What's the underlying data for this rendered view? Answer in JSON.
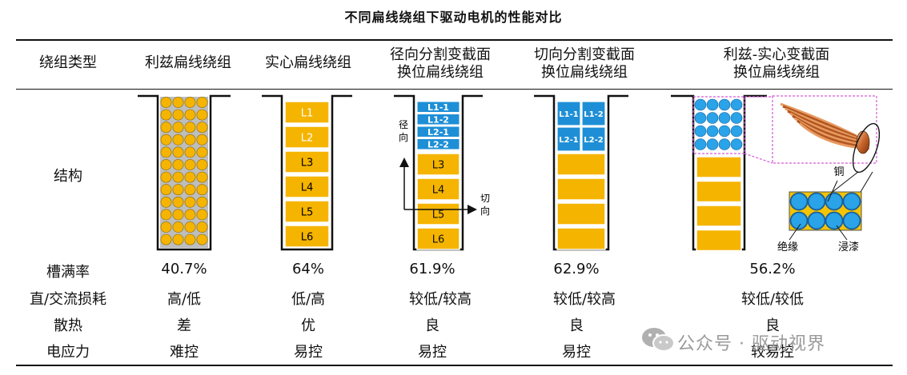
{
  "title": "不同扁线绕组下驱动电机的性能对比",
  "header": {
    "label": "绕组类型",
    "columns": [
      [
        "利兹扁线绕组"
      ],
      [
        "实心扁线绕组"
      ],
      [
        "径向分割变截面",
        "换位扁线绕组"
      ],
      [
        "切向分割变截面",
        "换位扁线绕组"
      ],
      [
        "利兹-实心变截面",
        "换位扁线绕组"
      ]
    ]
  },
  "rows": [
    {
      "label": "结构"
    },
    {
      "label": "槽满率",
      "values": [
        "40.7%",
        "64%",
        "61.9%",
        "62.9%",
        "56.2%"
      ]
    },
    {
      "label": "直/交流损耗",
      "values": [
        "高/低",
        "低/高",
        "较低/较高",
        "较低/较高",
        "较低/较低"
      ]
    },
    {
      "label": "散热",
      "values": [
        "差",
        "优",
        "良",
        "良",
        "良"
      ]
    },
    {
      "label": "电应力",
      "values": [
        "难控",
        "易控",
        "易控",
        "易控",
        "较易控"
      ]
    }
  ],
  "structure": {
    "solid_labels": [
      "L1",
      "L2",
      "L3",
      "L4",
      "L5",
      "L6"
    ],
    "radial_split_labels": [
      "L1-1",
      "L1-2",
      "L2-1",
      "L2-2"
    ],
    "radial_solid_labels": [
      "L3",
      "L4",
      "L5",
      "L6"
    ],
    "tangential_split_labels": [
      "L1-1",
      "L1-2",
      "L2-1",
      "L2-2"
    ],
    "axis_radial": "径向",
    "axis_tangential": "切向",
    "label_copper": "铜",
    "label_insulation": "绝缘",
    "label_varnish": "浸漆",
    "colors": {
      "gold": "#f5b400",
      "blue": "#1e8fd6",
      "lightblue": "#2aa3e8",
      "wire_bg": "#a8a8a8"
    }
  },
  "watermark": "公众号 · 驱动视界"
}
